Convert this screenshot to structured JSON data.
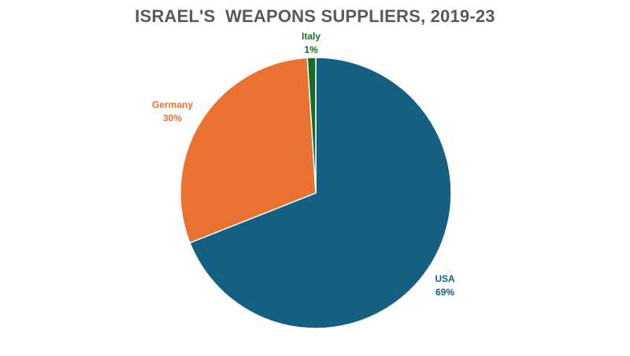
{
  "chart_data": {
    "type": "pie",
    "title": "ISRAEL'S  WEAPONS SUPPLIERS, 2019-23",
    "slices": [
      {
        "label": "USA",
        "value": 69,
        "value_label": "69%",
        "color": "#156082"
      },
      {
        "label": "Germany",
        "value": 30,
        "value_label": "30%",
        "color": "#E97132"
      },
      {
        "label": "Italy",
        "value": 1,
        "value_label": "1%",
        "color": "#196B24"
      }
    ],
    "start_angle": "12 o'clock",
    "direction": "clockwise",
    "legend": "none"
  }
}
